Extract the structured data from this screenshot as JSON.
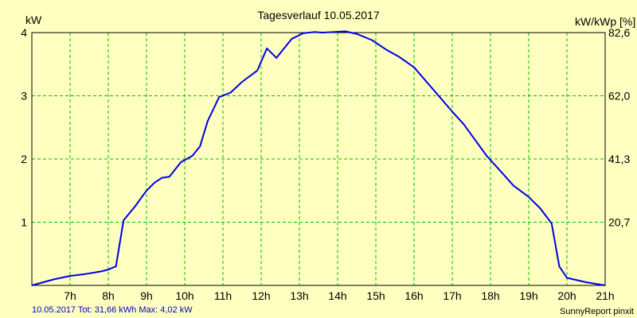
{
  "chart_data": {
    "type": "line",
    "title": "Tagesverlauf 10.05.2017",
    "ylabel_left": "kW",
    "ylabel_right": "kW/kWp [%]",
    "xlim": [
      6.0,
      21.0
    ],
    "ylim": [
      0,
      4
    ],
    "x_ticks": [
      {
        "x": 7,
        "label": "7h"
      },
      {
        "x": 8,
        "label": "8h"
      },
      {
        "x": 9,
        "label": "9h"
      },
      {
        "x": 10,
        "label": "10h"
      },
      {
        "x": 11,
        "label": "11h"
      },
      {
        "x": 12,
        "label": "12h"
      },
      {
        "x": 13,
        "label": "13h"
      },
      {
        "x": 14,
        "label": "14h"
      },
      {
        "x": 15,
        "label": "15h"
      },
      {
        "x": 16,
        "label": "16h"
      },
      {
        "x": 17,
        "label": "17h"
      },
      {
        "x": 18,
        "label": "18h"
      },
      {
        "x": 19,
        "label": "19h"
      },
      {
        "x": 20,
        "label": "20h"
      },
      {
        "x": 21,
        "label": "21h"
      }
    ],
    "y_ticks_left": [
      {
        "y": 1,
        "label": "1"
      },
      {
        "y": 2,
        "label": "2"
      },
      {
        "y": 3,
        "label": "3"
      },
      {
        "y": 4,
        "label": "4"
      }
    ],
    "y_ticks_right": [
      {
        "y": 1,
        "label": "20,7"
      },
      {
        "y": 2,
        "label": "41,3"
      },
      {
        "y": 3,
        "label": "62,0"
      },
      {
        "y": 4,
        "label": "82,6"
      }
    ],
    "grid": true,
    "series": [
      {
        "color": "#0000e6",
        "x": [
          6.0,
          6.3,
          6.6,
          7.0,
          7.4,
          7.8,
          8.0,
          8.2,
          8.4,
          8.7,
          9.0,
          9.2,
          9.4,
          9.6,
          9.9,
          10.2,
          10.4,
          10.6,
          10.9,
          11.2,
          11.5,
          11.9,
          12.15,
          12.4,
          12.8,
          13.1,
          13.4,
          13.6,
          13.9,
          14.2,
          14.5,
          14.9,
          15.3,
          15.6,
          16.0,
          16.5,
          17.0,
          17.3,
          17.6,
          17.9,
          18.2,
          18.6,
          19.0,
          19.3,
          19.6,
          19.8,
          20.0,
          20.5,
          21.0
        ],
        "y": [
          0.0,
          0.05,
          0.1,
          0.15,
          0.18,
          0.22,
          0.25,
          0.3,
          1.03,
          1.25,
          1.5,
          1.62,
          1.7,
          1.72,
          1.95,
          2.05,
          2.2,
          2.6,
          2.98,
          3.05,
          3.22,
          3.4,
          3.75,
          3.6,
          3.9,
          3.99,
          4.01,
          4.0,
          4.01,
          4.02,
          3.98,
          3.88,
          3.72,
          3.62,
          3.45,
          3.1,
          2.75,
          2.55,
          2.3,
          2.05,
          1.85,
          1.58,
          1.4,
          1.22,
          0.98,
          0.3,
          0.12,
          0.05,
          0.0
        ]
      }
    ]
  },
  "footer": {
    "left": "10.05.2017 Tot: 31,66 kWh Max: 4,02 kW",
    "right": "SunnyReport pinxit"
  },
  "colors": {
    "background": "#ffffc0",
    "grid": "#00c000",
    "line": "#0000e6",
    "footer_left": "#0000cc"
  }
}
